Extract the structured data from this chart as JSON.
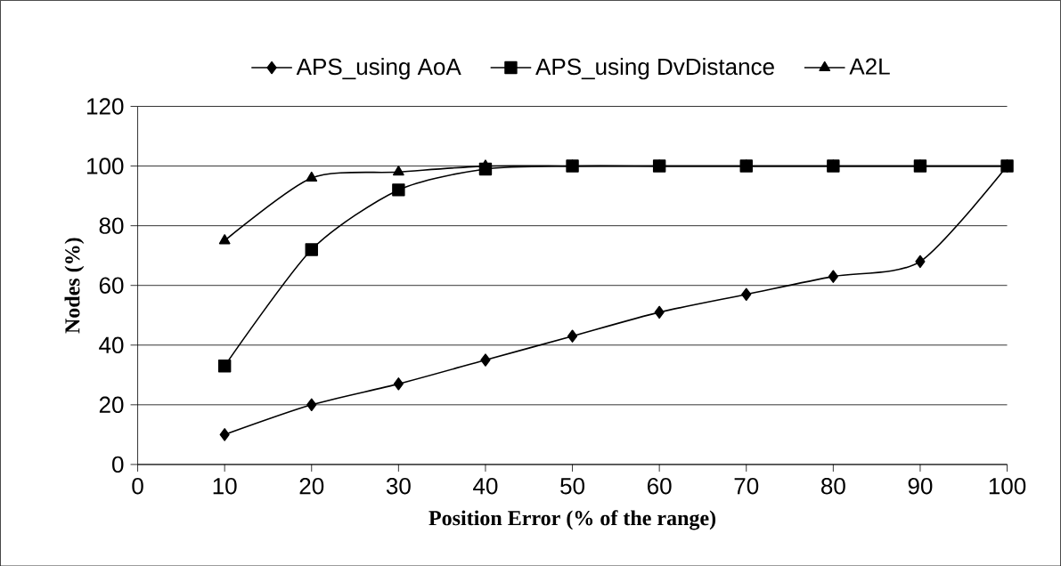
{
  "chart_data": {
    "type": "line",
    "xlabel": "Position Error (% of the range)",
    "ylabel": "Nodes (%)",
    "x": [
      10,
      20,
      30,
      40,
      50,
      60,
      70,
      80,
      90,
      100
    ],
    "series": [
      {
        "name": "APS_using AoA",
        "color": "#000000",
        "marker": "diamond",
        "values": [
          10,
          20,
          27,
          35,
          43,
          51,
          57,
          63,
          68,
          100
        ]
      },
      {
        "name": "APS_using DvDistance",
        "color": "#000000",
        "marker": "square",
        "values": [
          33,
          72,
          92,
          99,
          100,
          100,
          100,
          100,
          100,
          100
        ]
      },
      {
        "name": "A2L",
        "color": "#000000",
        "marker": "triangle",
        "values": [
          75,
          96,
          98,
          100,
          100,
          100,
          100,
          100,
          100,
          100
        ]
      }
    ],
    "xlim": [
      0,
      100
    ],
    "xticks": [
      0,
      10,
      20,
      30,
      40,
      50,
      60,
      70,
      80,
      90,
      100
    ],
    "ylim": [
      0,
      120
    ],
    "yticks": [
      0,
      20,
      40,
      60,
      80,
      100,
      120
    ],
    "grid": "y",
    "legend": "top",
    "line_style": "solid"
  }
}
